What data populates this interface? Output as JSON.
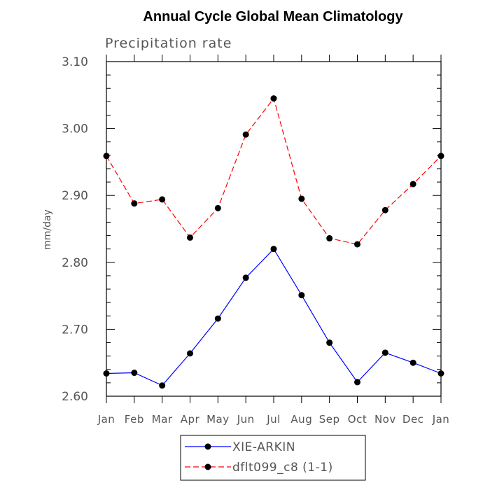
{
  "chart_data": {
    "type": "line",
    "title": "Annual Cycle Global Mean Climatology",
    "subtitle": "Precipitation rate",
    "xlabel": "",
    "ylabel": "mm/day",
    "categories": [
      "Jan",
      "Feb",
      "Mar",
      "Apr",
      "May",
      "Jun",
      "Jul",
      "Aug",
      "Sep",
      "Oct",
      "Nov",
      "Dec",
      "Jan"
    ],
    "ylim": [
      2.6,
      3.1
    ],
    "yticks": [
      "2.60",
      "2.70",
      "2.80",
      "2.90",
      "3.00",
      "3.10"
    ],
    "grid": false,
    "legend_position": "bottom-center",
    "series": [
      {
        "name": "XIE-ARKIN",
        "color": "#0000ff",
        "style": "solid",
        "values": [
          2.634,
          2.635,
          2.616,
          2.664,
          2.716,
          2.777,
          2.82,
          2.751,
          2.68,
          2.621,
          2.665,
          2.65,
          2.634
        ]
      },
      {
        "name": "dflt099_c8 (1-1)",
        "color": "#ff0000",
        "style": "dashed",
        "values": [
          2.959,
          2.888,
          2.894,
          2.837,
          2.881,
          2.991,
          3.045,
          2.895,
          2.836,
          2.827,
          2.878,
          2.917,
          2.959
        ]
      }
    ]
  }
}
